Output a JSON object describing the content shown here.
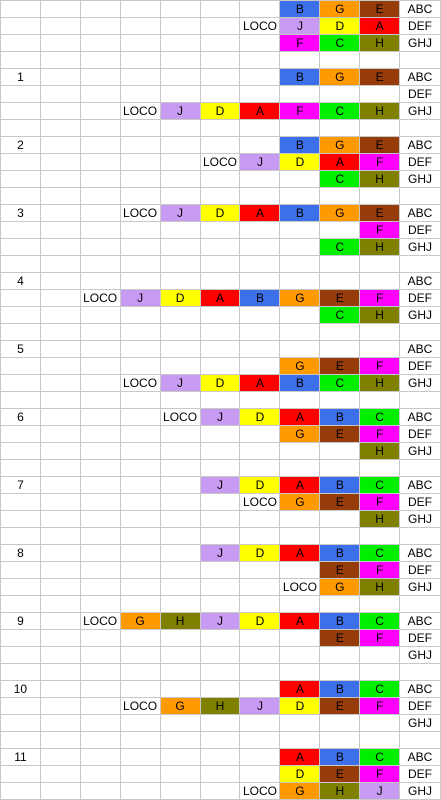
{
  "colors": {
    "A": "#ff0000",
    "B": "#3d6fe8",
    "C": "#00ee00",
    "D": "#ffff00",
    "E": "#963c0a",
    "F": "#ff00ff",
    "G": "#ff9a00",
    "H": "#808000",
    "J": "#c89bf2"
  },
  "loco_label": "LOCO",
  "grid": [
    [
      "",
      "",
      "",
      "",
      "",
      "",
      "",
      "B",
      "G",
      "E",
      "ABC"
    ],
    [
      "",
      "",
      "",
      "",
      "",
      "",
      "LOCO",
      "J",
      "D",
      "A",
      "DEF"
    ],
    [
      "",
      "",
      "",
      "",
      "",
      "",
      "",
      "F",
      "C",
      "H",
      "GHJ"
    ],
    [
      "",
      "",
      "",
      "",
      "",
      "",
      "",
      "",
      "",
      "",
      ""
    ],
    [
      "1",
      "",
      "",
      "",
      "",
      "",
      "",
      "B",
      "G",
      "E",
      "ABC"
    ],
    [
      "",
      "",
      "",
      "",
      "",
      "",
      "",
      "",
      "",
      "",
      "DEF"
    ],
    [
      "",
      "",
      "",
      "LOCO",
      "J",
      "D",
      "A",
      "F",
      "C",
      "H",
      "GHJ"
    ],
    [
      "",
      "",
      "",
      "",
      "",
      "",
      "",
      "",
      "",
      "",
      ""
    ],
    [
      "2",
      "",
      "",
      "",
      "",
      "",
      "",
      "B",
      "G",
      "E",
      "ABC"
    ],
    [
      "",
      "",
      "",
      "",
      "",
      "LOCO",
      "J",
      "D",
      "A",
      "F",
      "DEF"
    ],
    [
      "",
      "",
      "",
      "",
      "",
      "",
      "",
      "",
      "C",
      "H",
      "GHJ"
    ],
    [
      "",
      "",
      "",
      "",
      "",
      "",
      "",
      "",
      "",
      "",
      ""
    ],
    [
      "3",
      "",
      "",
      "LOCO",
      "J",
      "D",
      "A",
      "B",
      "G",
      "E",
      "ABC"
    ],
    [
      "",
      "",
      "",
      "",
      "",
      "",
      "",
      "",
      "",
      "F",
      "DEF"
    ],
    [
      "",
      "",
      "",
      "",
      "",
      "",
      "",
      "",
      "C",
      "H",
      "GHJ"
    ],
    [
      "",
      "",
      "",
      "",
      "",
      "",
      "",
      "",
      "",
      "",
      ""
    ],
    [
      "4",
      "",
      "",
      "",
      "",
      "",
      "",
      "",
      "",
      "",
      "ABC"
    ],
    [
      "",
      "",
      "LOCO",
      "J",
      "D",
      "A",
      "B",
      "G",
      "E",
      "F",
      "DEF"
    ],
    [
      "",
      "",
      "",
      "",
      "",
      "",
      "",
      "",
      "C",
      "H",
      "GHJ"
    ],
    [
      "",
      "",
      "",
      "",
      "",
      "",
      "",
      "",
      "",
      "",
      ""
    ],
    [
      "5",
      "",
      "",
      "",
      "",
      "",
      "",
      "",
      "",
      "",
      "ABC"
    ],
    [
      "",
      "",
      "",
      "",
      "",
      "",
      "",
      "G",
      "E",
      "F",
      "DEF"
    ],
    [
      "",
      "",
      "",
      "LOCO",
      "J",
      "D",
      "A",
      "B",
      "C",
      "H",
      "GHJ"
    ],
    [
      "",
      "",
      "",
      "",
      "",
      "",
      "",
      "",
      "",
      "",
      ""
    ],
    [
      "6",
      "",
      "",
      "",
      "LOCO",
      "J",
      "D",
      "A",
      "B",
      "C",
      "ABC"
    ],
    [
      "",
      "",
      "",
      "",
      "",
      "",
      "",
      "G",
      "E",
      "F",
      "DEF"
    ],
    [
      "",
      "",
      "",
      "",
      "",
      "",
      "",
      "",
      "",
      "H",
      "GHJ"
    ],
    [
      "",
      "",
      "",
      "",
      "",
      "",
      "",
      "",
      "",
      "",
      ""
    ],
    [
      "7",
      "",
      "",
      "",
      "",
      "J",
      "D",
      "A",
      "B",
      "C",
      "ABC"
    ],
    [
      "",
      "",
      "",
      "",
      "",
      "",
      "LOCO",
      "G",
      "E",
      "F",
      "DEF"
    ],
    [
      "",
      "",
      "",
      "",
      "",
      "",
      "",
      "",
      "",
      "H",
      "GHJ"
    ],
    [
      "",
      "",
      "",
      "",
      "",
      "",
      "",
      "",
      "",
      "",
      ""
    ],
    [
      "8",
      "",
      "",
      "",
      "",
      "J",
      "D",
      "A",
      "B",
      "C",
      "ABC"
    ],
    [
      "",
      "",
      "",
      "",
      "",
      "",
      "",
      "",
      "E",
      "F",
      "DEF"
    ],
    [
      "",
      "",
      "",
      "",
      "",
      "",
      "",
      "LOCO",
      "G",
      "H",
      "GHJ"
    ],
    [
      "",
      "",
      "",
      "",
      "",
      "",
      "",
      "",
      "",
      "",
      ""
    ],
    [
      "9",
      "",
      "LOCO",
      "G",
      "H",
      "J",
      "D",
      "A",
      "B",
      "C",
      "ABC"
    ],
    [
      "",
      "",
      "",
      "",
      "",
      "",
      "",
      "",
      "E",
      "F",
      "DEF"
    ],
    [
      "",
      "",
      "",
      "",
      "",
      "",
      "",
      "",
      "",
      "",
      "GHJ"
    ],
    [
      "",
      "",
      "",
      "",
      "",
      "",
      "",
      "",
      "",
      "",
      ""
    ],
    [
      "10",
      "",
      "",
      "",
      "",
      "",
      "",
      "A",
      "B",
      "C",
      "ABC"
    ],
    [
      "",
      "",
      "",
      "LOCO",
      "G",
      "H",
      "J",
      "D",
      "E",
      "F",
      "DEF"
    ],
    [
      "",
      "",
      "",
      "",
      "",
      "",
      "",
      "",
      "",
      "",
      "GHJ"
    ],
    [
      "",
      "",
      "",
      "",
      "",
      "",
      "",
      "",
      "",
      "",
      ""
    ],
    [
      "11",
      "",
      "",
      "",
      "",
      "",
      "",
      "A",
      "B",
      "C",
      "ABC"
    ],
    [
      "",
      "",
      "",
      "",
      "",
      "",
      "",
      "D",
      "E",
      "F",
      "DEF"
    ],
    [
      "",
      "",
      "",
      "",
      "",
      "",
      "LOCO",
      "G",
      "H",
      "J",
      "GHJ"
    ]
  ]
}
